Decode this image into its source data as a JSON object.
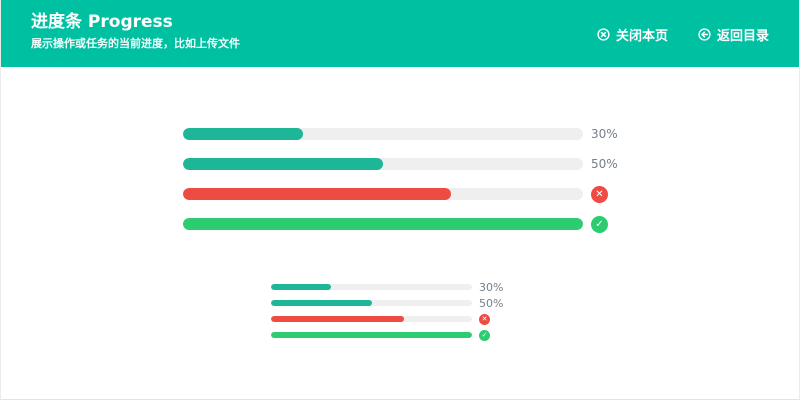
{
  "header": {
    "title": "进度条 Progress",
    "subtitle": "展示操作或任务的当前进度，比如上传文件",
    "links": [
      {
        "label": "关闭本页",
        "icon": "close-circle-icon"
      },
      {
        "label": "返回目录",
        "icon": "back-circle-icon"
      }
    ]
  },
  "colors": {
    "header_bg": "#00c0a2",
    "teal": "#1db798",
    "green": "#2ecc71",
    "red": "#ee4c43",
    "track": "#efefef",
    "label_text": "#75808a"
  },
  "status_icons": {
    "error": "✕",
    "success": "✓"
  },
  "progress_groups": [
    {
      "size": "large",
      "bars": [
        {
          "percent": 30,
          "color": "teal",
          "label": "30%"
        },
        {
          "percent": 50,
          "color": "teal",
          "label": "50%"
        },
        {
          "percent": 67,
          "color": "red",
          "status": "error"
        },
        {
          "percent": 100,
          "color": "green",
          "status": "success"
        }
      ]
    },
    {
      "size": "small",
      "bars": [
        {
          "percent": 30,
          "color": "teal",
          "label": "30%"
        },
        {
          "percent": 50,
          "color": "teal",
          "label": "50%"
        },
        {
          "percent": 66,
          "color": "red",
          "status": "error"
        },
        {
          "percent": 100,
          "color": "green",
          "status": "success"
        }
      ]
    }
  ]
}
